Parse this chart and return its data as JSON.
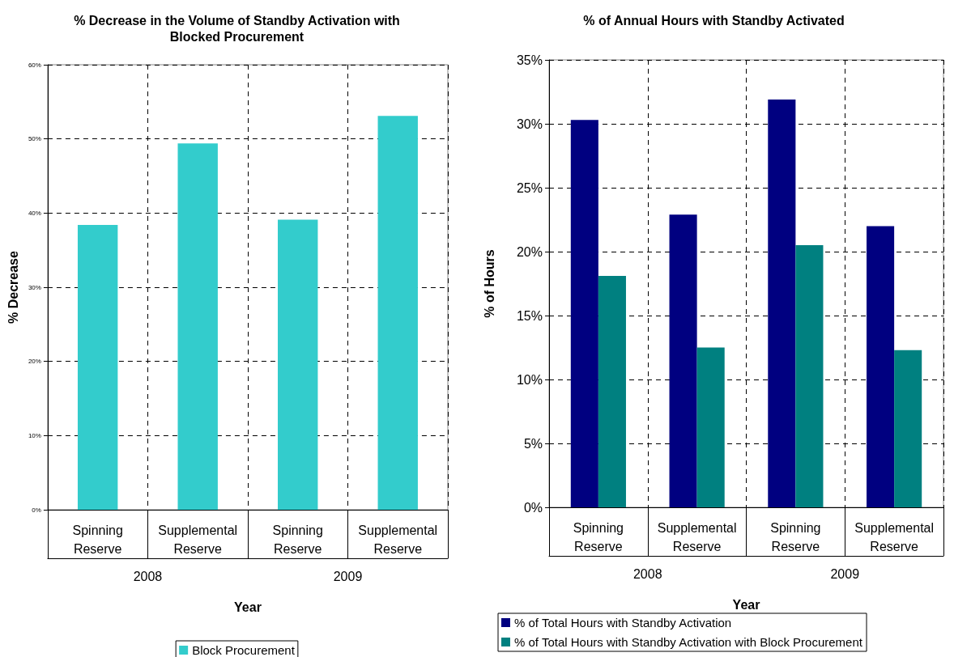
{
  "chart_data": [
    {
      "type": "bar",
      "title": "% Decrease in the Volume of Standby Activation with\nBlocked Procurement",
      "xlabel": "Year",
      "ylabel": "% Decrease",
      "categories": [
        "Spinning\nReserve",
        "Supplemental\nReserve",
        "Spinning\nReserve",
        "Supplemental\nReserve"
      ],
      "annotations": [
        "2008",
        "2009"
      ],
      "series": [
        {
          "name": "Block Procurement",
          "color": "#33cccc",
          "values": [
            38.4,
            49.4,
            39.1,
            53.1
          ]
        }
      ],
      "ylim": [
        0,
        60
      ],
      "yticks": [
        {
          "value": 0,
          "label": "0%"
        },
        {
          "value": 10,
          "label": "10%"
        },
        {
          "value": 20,
          "label": "20%"
        },
        {
          "value": 30,
          "label": "30%"
        },
        {
          "value": 40,
          "label": "40%"
        },
        {
          "value": 50,
          "label": "50%"
        },
        {
          "value": 60,
          "label": "60%"
        }
      ],
      "grid": true,
      "legend": "bottom"
    },
    {
      "type": "bar",
      "title": "% of Annual Hours with Standby Activated",
      "xlabel": "Year",
      "ylabel": "% of Hours",
      "categories": [
        "Spinning\nReserve",
        "Supplemental\nReserve",
        "Spinning\nReserve",
        "Supplemental\nReserve"
      ],
      "annotations": [
        "2008",
        "2009"
      ],
      "series": [
        {
          "name": "% of Total Hours with Standby Activation",
          "color": "#000080",
          "values": [
            30.3,
            22.9,
            31.9,
            22.0
          ]
        },
        {
          "name": "% of Total Hours with Standby Activation with Block Procurement",
          "color": "#008080",
          "values": [
            18.1,
            12.5,
            20.5,
            12.3
          ]
        }
      ],
      "ylim": [
        0,
        35
      ],
      "yticks": [
        {
          "value": 0,
          "label": "0%"
        },
        {
          "value": 5,
          "label": "5%"
        },
        {
          "value": 10,
          "label": "10%"
        },
        {
          "value": 15,
          "label": "15%"
        },
        {
          "value": 20,
          "label": "20%"
        },
        {
          "value": 25,
          "label": "25%"
        },
        {
          "value": 30,
          "label": "30%"
        },
        {
          "value": 35,
          "label": "35%"
        }
      ],
      "grid": true,
      "legend": "bottom"
    }
  ]
}
